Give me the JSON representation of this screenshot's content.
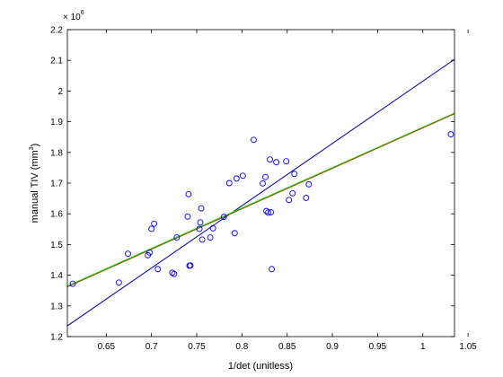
{
  "chart_data": {
    "type": "scatter",
    "xlabel": "1/det (unitless)",
    "ylabel_main": "manual TIV (mm",
    "ylabel_sup": "3",
    "ylabel_close": ")",
    "y_multiplier_base": "× 10",
    "y_multiplier_exp": "6",
    "xlim": [
      0.607,
      1.035
    ],
    "ylim": [
      1.2,
      2.2
    ],
    "x_ticks": [
      0.65,
      0.7,
      0.75,
      0.8,
      0.85,
      0.9,
      0.95,
      1.0,
      1.05
    ],
    "x_tick_labels": [
      "0.65",
      "0.7",
      "0.75",
      "0.8",
      "0.85",
      "0.9",
      "0.95",
      "1",
      "1.05"
    ],
    "y_ticks": [
      1.2,
      1.3,
      1.4,
      1.5,
      1.6,
      1.7,
      1.8,
      1.9,
      2.0,
      2.1,
      2.2
    ],
    "y_tick_labels": [
      "1.2",
      "1.3",
      "1.4",
      "1.5",
      "1.6",
      "1.7",
      "1.8",
      "1.9",
      "2",
      "2.1",
      "2.2"
    ],
    "points": {
      "marker": "open-circle",
      "color": "#0000ff",
      "x": [
        0.613,
        0.664,
        0.674,
        0.696,
        0.698,
        0.7,
        0.703,
        0.707,
        0.723,
        0.725,
        0.728,
        0.74,
        0.741,
        0.742,
        0.743,
        0.753,
        0.754,
        0.755,
        0.756,
        0.765,
        0.768,
        0.78,
        0.786,
        0.792,
        0.794,
        0.801,
        0.813,
        0.823,
        0.826,
        0.827,
        0.829,
        0.831,
        0.832,
        0.833,
        0.838,
        0.849,
        0.852,
        0.856,
        0.858,
        0.871,
        0.874,
        1.031
      ],
      "y": [
        1.372,
        1.376,
        1.47,
        1.465,
        1.474,
        1.551,
        1.568,
        1.42,
        1.408,
        1.404,
        1.523,
        1.591,
        1.664,
        1.431,
        1.432,
        1.551,
        1.572,
        1.618,
        1.516,
        1.523,
        1.553,
        1.59,
        1.7,
        1.537,
        1.715,
        1.724,
        1.841,
        1.699,
        1.72,
        1.609,
        1.604,
        1.777,
        1.605,
        1.42,
        1.768,
        1.771,
        1.645,
        1.667,
        1.73,
        1.652,
        1.696,
        1.859
      ]
    },
    "lines": [
      {
        "color": "#0000a0",
        "x": [
          0.607,
          1.035
        ],
        "y": [
          1.235,
          2.103
        ]
      },
      {
        "color": "#00ee00",
        "x": [
          0.607,
          1.035
        ],
        "y": [
          1.365,
          1.928
        ]
      },
      {
        "color": "#a04000",
        "x": [
          0.607,
          1.035
        ],
        "y": [
          1.362,
          1.926
        ]
      }
    ]
  }
}
